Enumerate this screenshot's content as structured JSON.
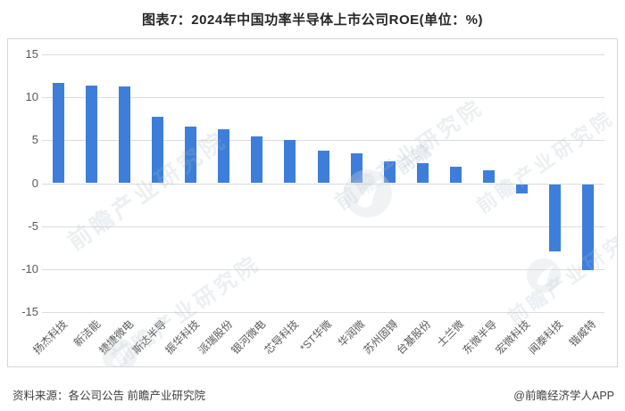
{
  "title": "图表7：2024年中国功率半导体上市公司ROE(单位：%)",
  "footer": {
    "source": "资料来源：各公司公告 前瞻产业研究院",
    "credit": "@前瞻经济学人APP"
  },
  "watermark": {
    "brand_text": "前瞻产业研究院",
    "logo_text": "前瞻"
  },
  "colors": {
    "bar": "#3d7edb",
    "grid": "#dcdcdc",
    "axis_text": "#595959",
    "title_text": "#262626",
    "footer_text": "#404040",
    "frame_border": "#d6d6d6",
    "background": "#ffffff",
    "watermark": "#aebbc9"
  },
  "chart_data": {
    "type": "bar",
    "title": "2024年中国功率半导体上市公司ROE",
    "unit": "%",
    "categories": [
      "扬杰科技",
      "新洁能",
      "捷捷微电",
      "斯达半导",
      "振华科技",
      "派瑞股份",
      "银河微电",
      "芯导科技",
      "*ST华微",
      "华润微",
      "苏州固锝",
      "台基股份",
      "士兰微",
      "东微半导",
      "宏微科技",
      "闻泰科技",
      "锴威特"
    ],
    "values": [
      11.7,
      11.4,
      11.3,
      7.7,
      6.6,
      6.3,
      5.4,
      5.0,
      3.8,
      3.5,
      2.5,
      2.3,
      1.9,
      1.5,
      -1.1,
      -7.8,
      -10.0
    ],
    "xlabel": "",
    "ylabel": "",
    "ylim": [
      -15,
      15
    ],
    "yticks": [
      15,
      10,
      5,
      0,
      -5,
      -10,
      -15
    ],
    "grid": true,
    "legend": false,
    "bar_color": "#3d7edb"
  }
}
